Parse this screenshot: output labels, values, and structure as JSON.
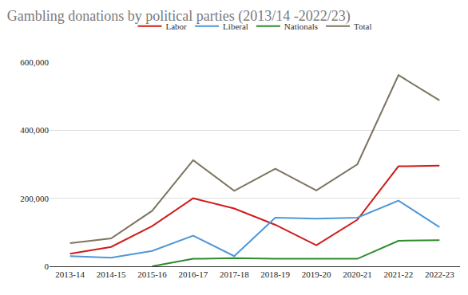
{
  "chart_data": {
    "type": "line",
    "title": "Gambling donations by political parties (2013/14 -2022/23)",
    "categories": [
      "2013-14",
      "2014-15",
      "2015-16",
      "2016-17",
      "2017-18",
      "2018-19",
      "2019-20",
      "2020-21",
      "2021-22",
      "2022-23"
    ],
    "series": [
      {
        "name": "Labor",
        "color": "#d01c1c",
        "values": [
          37000,
          57000,
          118000,
          200000,
          170000,
          122000,
          62000,
          137000,
          294000,
          296000
        ]
      },
      {
        "name": "Liberal",
        "color": "#4f97d8",
        "values": [
          30000,
          25000,
          45000,
          90000,
          30000,
          143000,
          140000,
          143000,
          193000,
          115000
        ]
      },
      {
        "name": "Nationals",
        "color": "#2e8b2e",
        "values": [
          null,
          null,
          0,
          22000,
          24000,
          22000,
          22000,
          22000,
          75000,
          77000
        ]
      },
      {
        "name": "Total",
        "color": "#7d7462",
        "values": [
          68000,
          82000,
          163000,
          312000,
          222000,
          287000,
          223000,
          300000,
          562000,
          488000
        ]
      }
    ],
    "ylim": [
      0,
      600000
    ],
    "yticks": [
      0,
      {
        "value": 200000,
        "label": "200,000"
      },
      {
        "value": 400000,
        "label": "400,000"
      },
      {
        "value": 600000,
        "label": "600,000"
      }
    ],
    "grid": true,
    "legend": "top"
  }
}
